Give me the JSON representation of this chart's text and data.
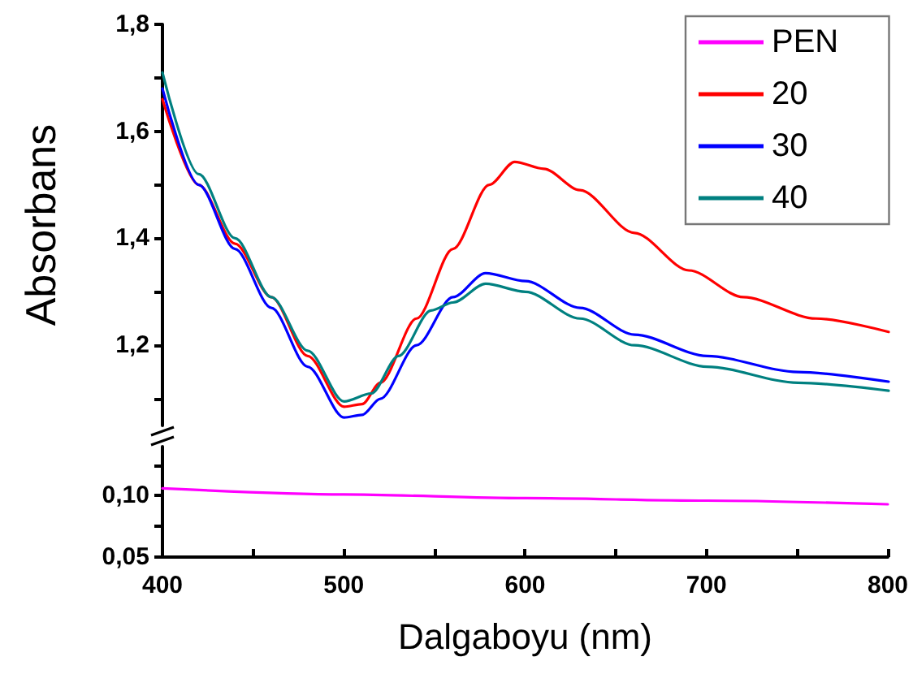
{
  "chart_data": [
    {
      "type": "line",
      "ylabel": "Absorbans",
      "xlim": [
        400,
        800
      ],
      "ylim": [
        1.05,
        1.8
      ],
      "yticks": [
        {
          "value": 1.1,
          "label": null
        },
        {
          "value": 1.2,
          "label": "1,2"
        },
        {
          "value": 1.3,
          "label": null
        },
        {
          "value": 1.4,
          "label": "1,4"
        },
        {
          "value": 1.5,
          "label": null
        },
        {
          "value": 1.6,
          "label": "1,6"
        },
        {
          "value": 1.7,
          "label": null
        },
        {
          "value": 1.8,
          "label": "1,8"
        }
      ],
      "tick_labels": "y",
      "legend": "top right",
      "marker": "none",
      "line_style": "solid",
      "grid": false,
      "series": [
        {
          "name": "20",
          "color": "#ff0000",
          "x": [
            400,
            420,
            440,
            460,
            480,
            500,
            510,
            520,
            540,
            560,
            580,
            594,
            610,
            630,
            660,
            690,
            720,
            760,
            800
          ],
          "values": [
            1.66,
            1.5,
            1.39,
            1.29,
            1.18,
            1.085,
            1.09,
            1.13,
            1.25,
            1.38,
            1.5,
            1.543,
            1.53,
            1.49,
            1.41,
            1.34,
            1.29,
            1.25,
            1.225
          ]
        },
        {
          "name": "30",
          "color": "#0000ff",
          "x": [
            400,
            420,
            440,
            460,
            480,
            500,
            510,
            520,
            540,
            560,
            578,
            600,
            630,
            660,
            700,
            750,
            800
          ],
          "values": [
            1.68,
            1.5,
            1.38,
            1.27,
            1.16,
            1.065,
            1.07,
            1.1,
            1.2,
            1.29,
            1.335,
            1.32,
            1.27,
            1.22,
            1.18,
            1.15,
            1.132
          ]
        },
        {
          "name": "40",
          "color": "#008080",
          "x": [
            400,
            420,
            440,
            460,
            480,
            500,
            515,
            530,
            548,
            560,
            578,
            600,
            630,
            660,
            700,
            750,
            800
          ],
          "values": [
            1.71,
            1.52,
            1.4,
            1.29,
            1.19,
            1.095,
            1.11,
            1.18,
            1.265,
            1.28,
            1.315,
            1.3,
            1.25,
            1.2,
            1.16,
            1.13,
            1.115
          ]
        }
      ]
    },
    {
      "type": "line",
      "xlabel": "Dalgaboyu (nm)",
      "xlim": [
        400,
        800
      ],
      "xticks": [
        400,
        {
          "value": 450,
          "label": null
        },
        500,
        {
          "value": 550,
          "label": null
        },
        600,
        {
          "value": 650,
          "label": null
        },
        700,
        {
          "value": 750,
          "label": null
        },
        800
      ],
      "ylim": [
        0.05,
        0.14
      ],
      "yticks": [
        {
          "value": 0.05,
          "label": "0,05"
        },
        {
          "value": 0.075,
          "label": null
        },
        {
          "value": 0.1,
          "label": "0,10"
        },
        {
          "value": 0.125,
          "label": null
        }
      ],
      "marker": "none",
      "line_style": "solid",
      "grid": false,
      "legend": "top right",
      "series": [
        {
          "name": "PEN",
          "color": "#ff00ff",
          "x": [
            400,
            500,
            600,
            700,
            800
          ],
          "values": [
            0.106,
            0.101,
            0.098,
            0.096,
            0.093
          ]
        }
      ]
    }
  ]
}
